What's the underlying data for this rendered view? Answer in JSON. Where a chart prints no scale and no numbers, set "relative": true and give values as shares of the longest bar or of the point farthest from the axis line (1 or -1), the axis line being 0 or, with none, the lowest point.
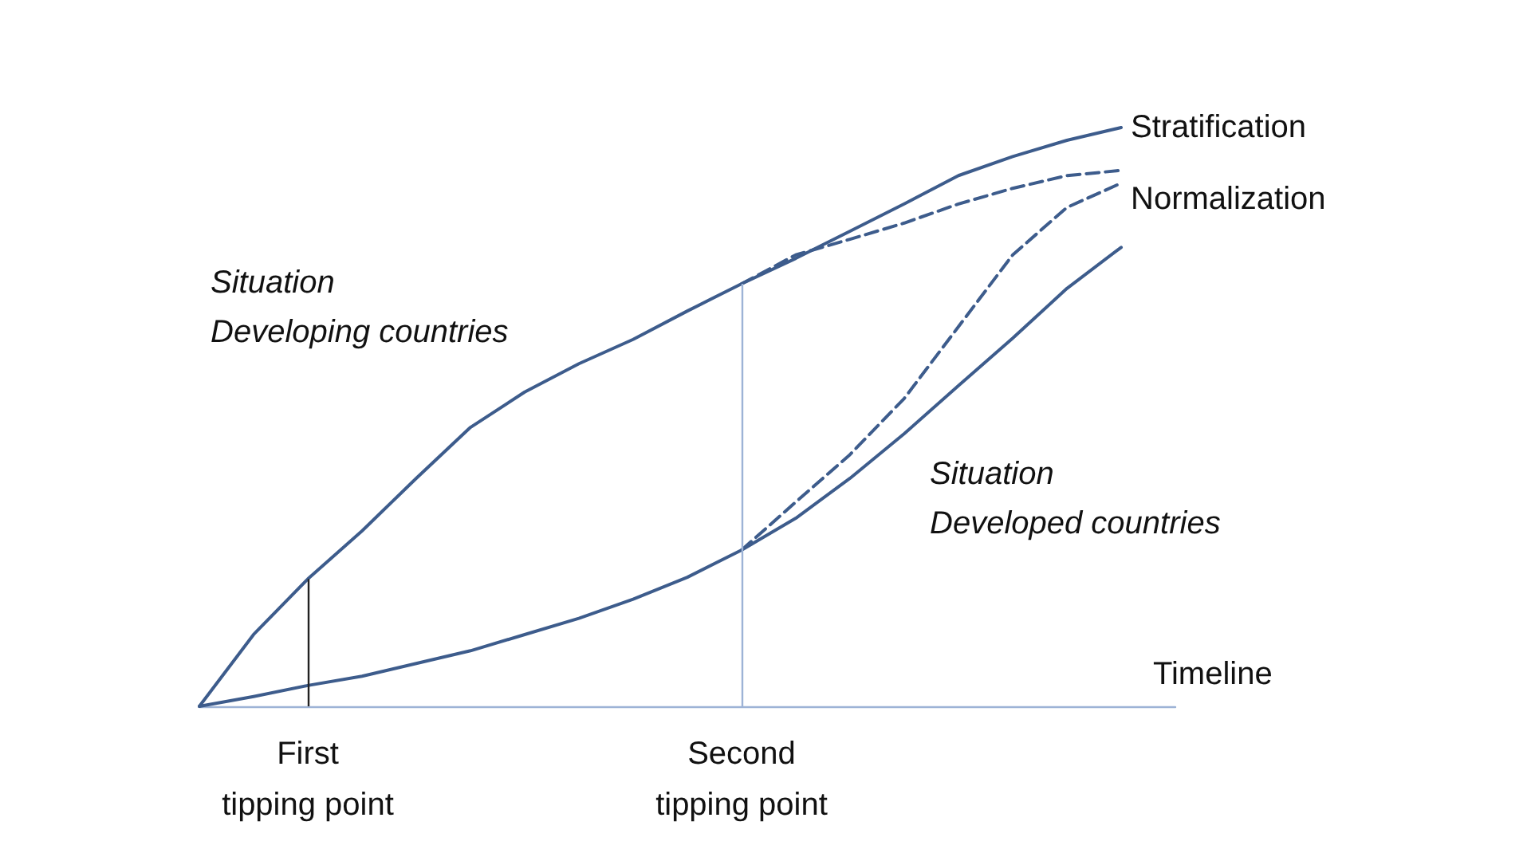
{
  "chart_data": {
    "type": "line",
    "relative": true,
    "xlabel": "Timeline",
    "tick_labels": "x",
    "grid": false,
    "legend": false,
    "marker": "none",
    "categories": [
      null,
      null,
      "First tipping point",
      null,
      null,
      null,
      null,
      null,
      null,
      null,
      "Second tipping point",
      null,
      null,
      null,
      null,
      null,
      null,
      null,
      null
    ],
    "annotations": [
      "Situation\nDeveloping countries",
      "Situation\nDeveloped countries"
    ],
    "ref_lines": [
      {
        "axis": "x",
        "value": "First tipping point",
        "color": "#222222"
      },
      {
        "axis": "x",
        "value": "Second tipping point",
        "color": "#9db3d6"
      }
    ],
    "series": [
      {
        "name": "Stratification",
        "color": "#3d5c8c",
        "line_style": "solid",
        "values": [
          0,
          0.124,
          0.22,
          0.303,
          0.394,
          0.482,
          0.543,
          0.592,
          0.634,
          0.683,
          0.73,
          0.774,
          0.821,
          0.868,
          0.917,
          0.95,
          0.978,
          1.0,
          null
        ]
      },
      {
        "color": "#3d5c8c",
        "line_style": "solid",
        "values": [
          0,
          0.017,
          0.036,
          0.052,
          0.074,
          0.096,
          0.124,
          0.152,
          0.185,
          0.223,
          0.27,
          0.325,
          0.394,
          0.471,
          0.554,
          0.636,
          0.722,
          0.793,
          null
        ]
      },
      {
        "name": "Normalization",
        "color": "#3d5c8c",
        "line_style": "dashed",
        "values": [
          null,
          null,
          null,
          null,
          null,
          null,
          null,
          null,
          null,
          null,
          0.73,
          0.78,
          0.807,
          0.835,
          0.868,
          0.895,
          0.917,
          0.926,
          null
        ]
      },
      {
        "color": "#3d5c8c",
        "line_style": "dashed",
        "values": [
          null,
          null,
          null,
          null,
          null,
          null,
          null,
          null,
          null,
          null,
          0.27,
          0.353,
          0.435,
          0.532,
          0.656,
          0.78,
          0.862,
          0.904,
          null
        ]
      }
    ]
  }
}
